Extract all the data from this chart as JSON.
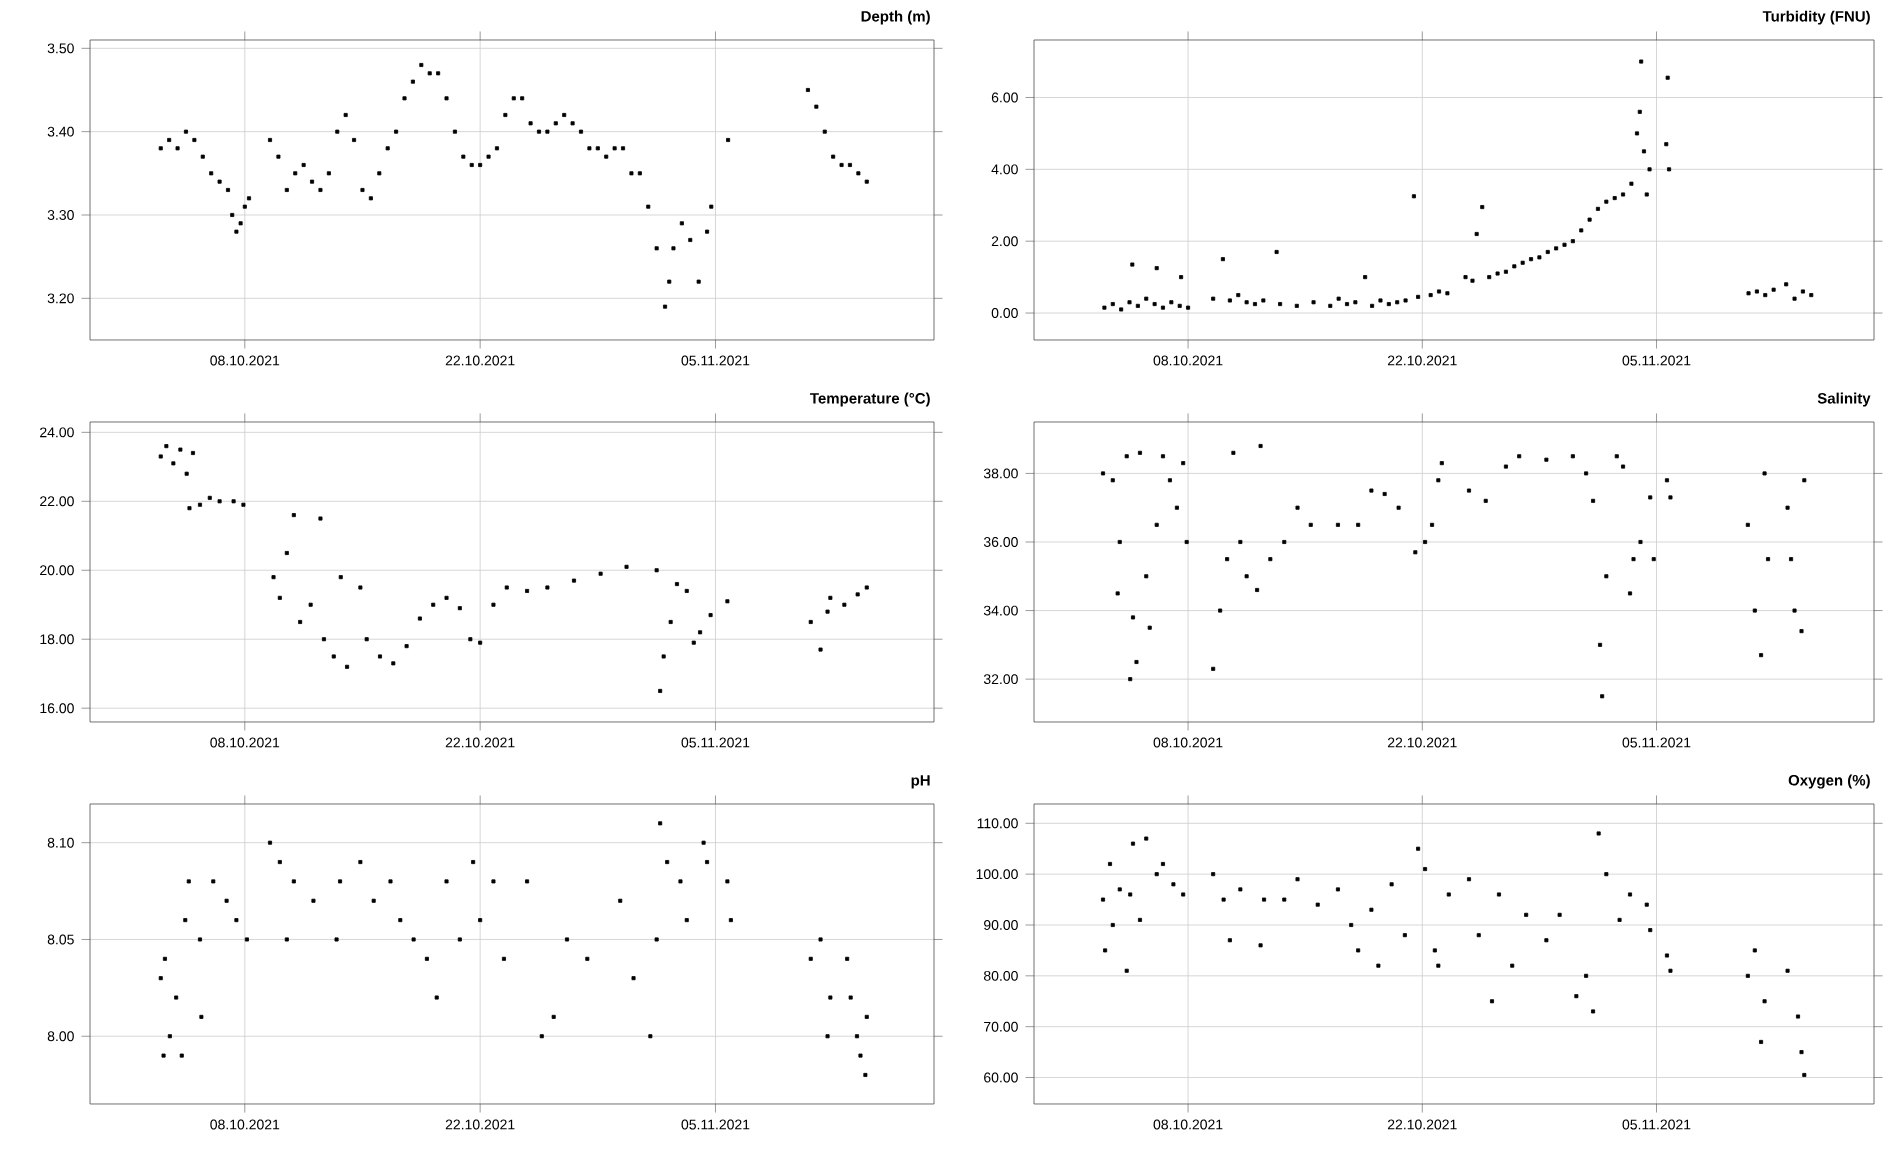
{
  "chart_data": [
    {
      "type": "scatter",
      "title": "Depth (m)",
      "color": "#000000",
      "marker": "square",
      "grid": true,
      "xlim": [
        "2021-09-28T19:00",
        "2021-11-18T00:00"
      ],
      "xticks": [
        {
          "value": "2021-10-08",
          "label": "08.10.2021"
        },
        {
          "value": "2021-10-22",
          "label": "22.10.2021"
        },
        {
          "value": "2021-11-05",
          "label": "05.11.2021"
        }
      ],
      "ylim": [
        3.15,
        3.51
      ],
      "yticks": [
        {
          "value": 3.2,
          "label": "3.20"
        },
        {
          "value": 3.3,
          "label": "3.30"
        },
        {
          "value": 3.4,
          "label": "3.40"
        },
        {
          "value": 3.5,
          "label": "3.50"
        }
      ],
      "x": [
        "2021-10-03T00:00",
        "2021-10-03T12:00",
        "2021-10-04T00:00",
        "2021-10-04T12:00",
        "2021-10-05T00:00",
        "2021-10-05T12:00",
        "2021-10-06T00:00",
        "2021-10-06T12:00",
        "2021-10-07T00:00",
        "2021-10-07T06:00",
        "2021-10-07T12:00",
        "2021-10-07T18:00",
        "2021-10-08T00:00",
        "2021-10-08T06:00",
        "2021-10-09T12:00",
        "2021-10-10T00:00",
        "2021-10-10T12:00",
        "2021-10-11T00:00",
        "2021-10-11T12:00",
        "2021-10-12T00:00",
        "2021-10-12T12:00",
        "2021-10-13T00:00",
        "2021-10-13T12:00",
        "2021-10-14T00:00",
        "2021-10-14T12:00",
        "2021-10-15T00:00",
        "2021-10-15T12:00",
        "2021-10-16T00:00",
        "2021-10-16T12:00",
        "2021-10-17T00:00",
        "2021-10-17T12:00",
        "2021-10-18T00:00",
        "2021-10-18T12:00",
        "2021-10-19T00:00",
        "2021-10-19T12:00",
        "2021-10-20T00:00",
        "2021-10-20T12:00",
        "2021-10-21T00:00",
        "2021-10-21T12:00",
        "2021-10-22T00:00",
        "2021-10-22T12:00",
        "2021-10-23T00:00",
        "2021-10-23T12:00",
        "2021-10-24T00:00",
        "2021-10-24T12:00",
        "2021-10-25T00:00",
        "2021-10-25T12:00",
        "2021-10-26T00:00",
        "2021-10-26T12:00",
        "2021-10-27T00:00",
        "2021-10-27T12:00",
        "2021-10-28T00:00",
        "2021-10-28T12:00",
        "2021-10-29T00:00",
        "2021-10-29T12:00",
        "2021-10-30T00:00",
        "2021-10-30T12:00",
        "2021-10-31T00:00",
        "2021-10-31T12:00",
        "2021-11-01T00:00",
        "2021-11-01T12:00",
        "2021-11-02T00:00",
        "2021-11-02T06:00",
        "2021-11-02T12:00",
        "2021-11-03T00:00",
        "2021-11-03T12:00",
        "2021-11-04T00:00",
        "2021-11-04T12:00",
        "2021-11-04T18:00",
        "2021-11-05T18:00",
        "2021-11-10T12:00",
        "2021-11-11T00:00",
        "2021-11-11T12:00",
        "2021-11-12T00:00",
        "2021-11-12T12:00",
        "2021-11-13T00:00",
        "2021-11-13T12:00",
        "2021-11-14T00:00"
      ],
      "values": [
        3.38,
        3.39,
        3.38,
        3.4,
        3.39,
        3.37,
        3.35,
        3.34,
        3.33,
        3.3,
        3.28,
        3.29,
        3.31,
        3.32,
        3.39,
        3.37,
        3.33,
        3.35,
        3.36,
        3.34,
        3.33,
        3.35,
        3.4,
        3.42,
        3.39,
        3.33,
        3.32,
        3.35,
        3.38,
        3.4,
        3.44,
        3.46,
        3.48,
        3.47,
        3.47,
        3.44,
        3.4,
        3.37,
        3.36,
        3.36,
        3.37,
        3.38,
        3.42,
        3.44,
        3.44,
        3.41,
        3.4,
        3.4,
        3.41,
        3.42,
        3.41,
        3.4,
        3.38,
        3.38,
        3.37,
        3.38,
        3.38,
        3.35,
        3.35,
        3.31,
        3.26,
        3.19,
        3.22,
        3.26,
        3.29,
        3.27,
        3.22,
        3.28,
        3.31,
        3.39,
        3.45,
        3.43,
        3.4,
        3.37,
        3.36,
        3.36,
        3.35,
        3.34
      ]
    },
    {
      "type": "scatter",
      "title": "Turbidity (FNU)",
      "color": "#000000",
      "marker": "square",
      "grid": true,
      "xlim": [
        "2021-09-28T19:00",
        "2021-11-18T00:00"
      ],
      "xticks": [
        {
          "value": "2021-10-08",
          "label": "08.10.2021"
        },
        {
          "value": "2021-10-22",
          "label": "22.10.2021"
        },
        {
          "value": "2021-11-05",
          "label": "05.11.2021"
        }
      ],
      "ylim": [
        -0.75,
        7.6
      ],
      "yticks": [
        {
          "value": 0,
          "label": "0.00"
        },
        {
          "value": 2,
          "label": "2.00"
        },
        {
          "value": 4,
          "label": "4.00"
        },
        {
          "value": 6,
          "label": "6.00"
        }
      ],
      "x": [
        "2021-10-03T00:00",
        "2021-10-03T12:00",
        "2021-10-04T00:00",
        "2021-10-04T12:00",
        "2021-10-04T16:00",
        "2021-10-05T00:00",
        "2021-10-05T12:00",
        "2021-10-06T00:00",
        "2021-10-06T03:00",
        "2021-10-06T12:00",
        "2021-10-07T00:00",
        "2021-10-07T12:00",
        "2021-10-07T14:00",
        "2021-10-08T00:00",
        "2021-10-09T12:00",
        "2021-10-10T02:00",
        "2021-10-10T12:00",
        "2021-10-11T00:00",
        "2021-10-11T12:00",
        "2021-10-12T00:00",
        "2021-10-12T12:00",
        "2021-10-13T07:00",
        "2021-10-13T12:00",
        "2021-10-14T12:00",
        "2021-10-15T12:00",
        "2021-10-16T12:00",
        "2021-10-17T00:00",
        "2021-10-17T12:00",
        "2021-10-18T00:00",
        "2021-10-18T14:00",
        "2021-10-19T00:00",
        "2021-10-19T12:00",
        "2021-10-20T00:00",
        "2021-10-20T12:00",
        "2021-10-21T00:00",
        "2021-10-21T12:00",
        "2021-10-21T18:00",
        "2021-10-22T12:00",
        "2021-10-23T00:00",
        "2021-10-23T12:00",
        "2021-10-24T14:00",
        "2021-10-25T00:00",
        "2021-10-25T06:00",
        "2021-10-25T14:00",
        "2021-10-26T00:00",
        "2021-10-26T12:00",
        "2021-10-27T00:00",
        "2021-10-27T12:00",
        "2021-10-28T00:00",
        "2021-10-28T12:00",
        "2021-10-29T00:00",
        "2021-10-29T12:00",
        "2021-10-30T00:00",
        "2021-10-30T12:00",
        "2021-10-31T00:00",
        "2021-10-31T12:00",
        "2021-11-01T00:00",
        "2021-11-01T12:00",
        "2021-11-02T00:00",
        "2021-11-02T12:00",
        "2021-11-03T00:00",
        "2021-11-03T12:00",
        "2021-11-03T20:00",
        "2021-11-04T00:00",
        "2021-11-04T02:00",
        "2021-11-04T06:00",
        "2021-11-04T10:00",
        "2021-11-04T14:00",
        "2021-11-05T14:00",
        "2021-11-05T16:00",
        "2021-11-05T18:00",
        "2021-11-10T12:00",
        "2021-11-11T00:00",
        "2021-11-11T12:00",
        "2021-11-12T00:00",
        "2021-11-12T18:00",
        "2021-11-13T06:00",
        "2021-11-13T18:00",
        "2021-11-14T06:00"
      ],
      "values": [
        0.15,
        0.25,
        0.1,
        0.3,
        1.35,
        0.2,
        0.4,
        0.25,
        1.25,
        0.15,
        0.3,
        0.2,
        1.0,
        0.15,
        0.4,
        1.5,
        0.35,
        0.5,
        0.3,
        0.25,
        0.35,
        1.7,
        0.25,
        0.2,
        0.3,
        0.2,
        0.4,
        0.25,
        0.3,
        1.0,
        0.2,
        0.35,
        0.25,
        0.3,
        0.35,
        3.25,
        0.45,
        0.5,
        0.6,
        0.55,
        1.0,
        0.9,
        2.2,
        2.95,
        1.0,
        1.1,
        1.15,
        1.3,
        1.4,
        1.5,
        1.55,
        1.7,
        1.8,
        1.9,
        2.0,
        2.3,
        2.6,
        2.9,
        3.1,
        3.2,
        3.3,
        3.6,
        5.0,
        5.6,
        7.0,
        4.5,
        3.3,
        4.0,
        4.7,
        6.55,
        4.0,
        0.55,
        0.6,
        0.5,
        0.65,
        0.8,
        0.4,
        0.6,
        0.5
      ]
    },
    {
      "type": "scatter",
      "title": "Temperature (°C)",
      "color": "#000000",
      "marker": "square",
      "grid": true,
      "xlim": [
        "2021-09-28T19:00",
        "2021-11-18T00:00"
      ],
      "xticks": [
        {
          "value": "2021-10-08",
          "label": "08.10.2021"
        },
        {
          "value": "2021-10-22",
          "label": "22.10.2021"
        },
        {
          "value": "2021-11-05",
          "label": "05.11.2021"
        }
      ],
      "ylim": [
        15.6,
        24.3
      ],
      "yticks": [
        {
          "value": 16,
          "label": "16.00"
        },
        {
          "value": 18,
          "label": "18.00"
        },
        {
          "value": 20,
          "label": "20.00"
        },
        {
          "value": 22,
          "label": "22.00"
        },
        {
          "value": 24,
          "label": "24.00"
        }
      ],
      "x": [
        "2021-10-03T00:00",
        "2021-10-03T08:00",
        "2021-10-03T18:00",
        "2021-10-04T04:00",
        "2021-10-04T13:00",
        "2021-10-04T17:00",
        "2021-10-04T22:00",
        "2021-10-05T08:00",
        "2021-10-05T22:00",
        "2021-10-06T12:00",
        "2021-10-07T08:00",
        "2021-10-07T22:00",
        "2021-10-09T17:00",
        "2021-10-10T02:00",
        "2021-10-10T12:00",
        "2021-10-10T22:00",
        "2021-10-11T07:00",
        "2021-10-11T22:00",
        "2021-10-12T12:00",
        "2021-10-12T17:00",
        "2021-10-13T07:00",
        "2021-10-13T17:00",
        "2021-10-14T02:00",
        "2021-10-14T21:00",
        "2021-10-15T06:00",
        "2021-10-16T01:00",
        "2021-10-16T20:00",
        "2021-10-17T15:00",
        "2021-10-18T10:00",
        "2021-10-19T05:00",
        "2021-10-20T00:00",
        "2021-10-20T19:00",
        "2021-10-21T10:00",
        "2021-10-22T00:00",
        "2021-10-22T19:00",
        "2021-10-23T14:00",
        "2021-10-24T19:00",
        "2021-10-26T00:00",
        "2021-10-27T14:00",
        "2021-10-29T04:00",
        "2021-10-30T17:00",
        "2021-11-01T12:00",
        "2021-11-01T17:00",
        "2021-11-01T22:00",
        "2021-11-02T08:00",
        "2021-11-02T17:00",
        "2021-11-03T07:00",
        "2021-11-03T17:00",
        "2021-11-04T02:00",
        "2021-11-04T17:00",
        "2021-11-05T17:00",
        "2021-11-10T16:00",
        "2021-11-11T06:00",
        "2021-11-11T16:00",
        "2021-11-11T20:00",
        "2021-11-12T16:00",
        "2021-11-13T11:00",
        "2021-11-14T00:00"
      ],
      "values": [
        23.3,
        23.6,
        23.1,
        23.5,
        22.8,
        21.8,
        23.4,
        21.9,
        22.1,
        22.0,
        22.0,
        21.9,
        19.8,
        19.2,
        20.5,
        21.6,
        18.5,
        19.0,
        21.5,
        18.0,
        17.5,
        19.8,
        17.2,
        19.5,
        18.0,
        17.5,
        17.3,
        17.8,
        18.6,
        19.0,
        19.2,
        18.9,
        18.0,
        17.9,
        19.0,
        19.5,
        19.4,
        19.5,
        19.7,
        19.9,
        20.1,
        20.0,
        16.5,
        17.5,
        18.5,
        19.6,
        19.4,
        17.9,
        18.2,
        18.7,
        19.1,
        18.5,
        17.7,
        18.8,
        19.2,
        19.0,
        19.3,
        19.5
      ]
    },
    {
      "type": "scatter",
      "title": "Salinity",
      "color": "#000000",
      "marker": "square",
      "grid": true,
      "xlim": [
        "2021-09-28T19:00",
        "2021-11-18T00:00"
      ],
      "xticks": [
        {
          "value": "2021-10-08",
          "label": "08.10.2021"
        },
        {
          "value": "2021-10-22",
          "label": "22.10.2021"
        },
        {
          "value": "2021-11-05",
          "label": "05.11.2021"
        }
      ],
      "ylim": [
        30.75,
        39.5
      ],
      "yticks": [
        {
          "value": 32,
          "label": "32.00"
        },
        {
          "value": 34,
          "label": "34.00"
        },
        {
          "value": 36,
          "label": "36.00"
        },
        {
          "value": 38,
          "label": "38.00"
        }
      ],
      "x": [
        "2021-10-02T22:00",
        "2021-10-03T12:00",
        "2021-10-03T19:00",
        "2021-10-03T22:00",
        "2021-10-04T08:00",
        "2021-10-04T13:00",
        "2021-10-04T17:00",
        "2021-10-04T22:00",
        "2021-10-05T03:00",
        "2021-10-05T12:00",
        "2021-10-05T17:00",
        "2021-10-06T03:00",
        "2021-10-06T12:00",
        "2021-10-06T22:00",
        "2021-10-07T08:00",
        "2021-10-07T17:00",
        "2021-10-07T22:00",
        "2021-10-09T12:00",
        "2021-10-09T22:00",
        "2021-10-10T08:00",
        "2021-10-10T17:00",
        "2021-10-11T03:00",
        "2021-10-11T12:00",
        "2021-10-12T03:00",
        "2021-10-12T08:00",
        "2021-10-12T22:00",
        "2021-10-13T18:00",
        "2021-10-14T13:00",
        "2021-10-15T08:00",
        "2021-10-16T23:00",
        "2021-10-18T04:00",
        "2021-10-18T23:00",
        "2021-10-19T18:00",
        "2021-10-20T14:00",
        "2021-10-21T14:00",
        "2021-10-22T04:00",
        "2021-10-22T14:00",
        "2021-10-22T23:00",
        "2021-10-23T04:00",
        "2021-10-24T19:00",
        "2021-10-25T19:00",
        "2021-10-27T00:00",
        "2021-10-27T19:00",
        "2021-10-29T10:00",
        "2021-10-31T00:00",
        "2021-10-31T19:00",
        "2021-11-01T05:00",
        "2021-11-01T15:00",
        "2021-11-01T18:00",
        "2021-11-02T00:00",
        "2021-11-02T15:00",
        "2021-11-03T00:00",
        "2021-11-03T10:00",
        "2021-11-03T15:00",
        "2021-11-04T01:00",
        "2021-11-04T15:00",
        "2021-11-04T20:00",
        "2021-11-05T15:00",
        "2021-11-05T20:00",
        "2021-11-10T11:00",
        "2021-11-10T21:00",
        "2021-11-11T06:00",
        "2021-11-11T11:00",
        "2021-11-11T16:00",
        "2021-11-12T20:00",
        "2021-11-13T01:00",
        "2021-11-13T06:00",
        "2021-11-13T16:00",
        "2021-11-13T20:00"
      ],
      "values": [
        38.0,
        37.8,
        34.5,
        36.0,
        38.5,
        32.0,
        33.8,
        32.5,
        38.6,
        35.0,
        33.5,
        36.5,
        38.5,
        37.8,
        37.0,
        38.3,
        36.0,
        32.3,
        34.0,
        35.5,
        38.6,
        36.0,
        35.0,
        34.6,
        38.8,
        35.5,
        36.0,
        37.0,
        36.5,
        36.5,
        36.5,
        37.5,
        37.4,
        37.0,
        35.7,
        36.0,
        36.5,
        37.8,
        38.3,
        37.5,
        37.2,
        38.2,
        38.5,
        38.4,
        38.5,
        38.0,
        37.2,
        33.0,
        31.5,
        35.0,
        38.5,
        38.2,
        34.5,
        35.5,
        36.0,
        37.3,
        35.5,
        37.8,
        37.3,
        36.5,
        34.0,
        32.7,
        38.0,
        35.5,
        37.0,
        35.5,
        34.0,
        33.4,
        37.8
      ]
    },
    {
      "type": "scatter",
      "title": "pH",
      "color": "#000000",
      "marker": "square",
      "grid": true,
      "xlim": [
        "2021-09-28T19:00",
        "2021-11-18T00:00"
      ],
      "xticks": [
        {
          "value": "2021-10-08",
          "label": "08.10.2021"
        },
        {
          "value": "2021-10-22",
          "label": "22.10.2021"
        },
        {
          "value": "2021-11-05",
          "label": "05.11.2021"
        }
      ],
      "ylim": [
        7.965,
        8.12
      ],
      "yticks": [
        {
          "value": 8.0,
          "label": "8.00"
        },
        {
          "value": 8.05,
          "label": "8.05"
        },
        {
          "value": 8.1,
          "label": "8.10"
        }
      ],
      "x": [
        "2021-10-03T00:00",
        "2021-10-03T04:00",
        "2021-10-03T06:00",
        "2021-10-03T13:00",
        "2021-10-03T22:00",
        "2021-10-04T06:00",
        "2021-10-04T11:00",
        "2021-10-04T16:00",
        "2021-10-05T08:00",
        "2021-10-05T10:00",
        "2021-10-06T03:00",
        "2021-10-06T22:00",
        "2021-10-07T12:00",
        "2021-10-08T03:00",
        "2021-10-09T12:00",
        "2021-10-10T02:00",
        "2021-10-10T12:00",
        "2021-10-10T22:00",
        "2021-10-12T02:00",
        "2021-10-13T11:00",
        "2021-10-13T16:00",
        "2021-10-14T21:00",
        "2021-10-15T16:00",
        "2021-10-16T16:00",
        "2021-10-17T06:00",
        "2021-10-18T01:00",
        "2021-10-18T20:00",
        "2021-10-19T10:00",
        "2021-10-20T00:00",
        "2021-10-20T19:00",
        "2021-10-21T14:00",
        "2021-10-22T00:00",
        "2021-10-22T19:00",
        "2021-10-23T10:00",
        "2021-10-24T19:00",
        "2021-10-25T16:00",
        "2021-10-26T09:00",
        "2021-10-27T04:00",
        "2021-10-28T09:00",
        "2021-10-30T08:00",
        "2021-10-31T03:00",
        "2021-11-01T03:00",
        "2021-11-01T12:00",
        "2021-11-01T17:00",
        "2021-11-02T03:00",
        "2021-11-02T22:00",
        "2021-11-03T07:00",
        "2021-11-04T07:00",
        "2021-11-04T12:00",
        "2021-11-05T17:00",
        "2021-11-05T22:00",
        "2021-11-10T16:00",
        "2021-11-11T06:00",
        "2021-11-11T16:00",
        "2021-11-11T20:00",
        "2021-11-12T20:00",
        "2021-11-13T01:00",
        "2021-11-13T10:00",
        "2021-11-13T15:00",
        "2021-11-13T22:00",
        "2021-11-14T00:00"
      ],
      "values": [
        8.03,
        7.99,
        8.04,
        8.0,
        8.02,
        7.99,
        8.06,
        8.08,
        8.05,
        8.01,
        8.08,
        8.07,
        8.06,
        8.05,
        8.1,
        8.09,
        8.05,
        8.08,
        8.07,
        8.05,
        8.08,
        8.09,
        8.07,
        8.08,
        8.06,
        8.05,
        8.04,
        8.02,
        8.08,
        8.05,
        8.09,
        8.06,
        8.08,
        8.04,
        8.08,
        8.0,
        8.01,
        8.05,
        8.04,
        8.07,
        8.03,
        8.0,
        8.05,
        8.11,
        8.09,
        8.08,
        8.06,
        8.1,
        8.09,
        8.08,
        8.06,
        8.04,
        8.05,
        8.0,
        8.02,
        8.04,
        8.02,
        8.0,
        7.99,
        7.98,
        8.01
      ]
    },
    {
      "type": "scatter",
      "title": "Oxygen (%)",
      "color": "#000000",
      "marker": "square",
      "grid": true,
      "xlim": [
        "2021-09-28T19:00",
        "2021-11-18T00:00"
      ],
      "xticks": [
        {
          "value": "2021-10-08",
          "label": "08.10.2021"
        },
        {
          "value": "2021-10-22",
          "label": "22.10.2021"
        },
        {
          "value": "2021-11-05",
          "label": "05.11.2021"
        }
      ],
      "ylim": [
        54.8,
        113.8
      ],
      "yticks": [
        {
          "value": 60,
          "label": "60.00"
        },
        {
          "value": 70,
          "label": "70.00"
        },
        {
          "value": 80,
          "label": "80.00"
        },
        {
          "value": 90,
          "label": "90.00"
        },
        {
          "value": 100,
          "label": "100.00"
        },
        {
          "value": 110,
          "label": "110.00"
        }
      ],
      "x": [
        "2021-10-02T22:00",
        "2021-10-03T01:00",
        "2021-10-03T08:00",
        "2021-10-03T12:00",
        "2021-10-03T22:00",
        "2021-10-04T08:00",
        "2021-10-04T13:00",
        "2021-10-04T17:00",
        "2021-10-05T03:00",
        "2021-10-05T12:00",
        "2021-10-06T03:00",
        "2021-10-06T12:00",
        "2021-10-07T03:00",
        "2021-10-07T17:00",
        "2021-10-09T12:00",
        "2021-10-10T03:00",
        "2021-10-10T12:00",
        "2021-10-11T03:00",
        "2021-10-12T08:00",
        "2021-10-12T13:00",
        "2021-10-13T18:00",
        "2021-10-14T13:00",
        "2021-10-15T18:00",
        "2021-10-16T23:00",
        "2021-10-17T18:00",
        "2021-10-18T04:00",
        "2021-10-18T23:00",
        "2021-10-19T09:00",
        "2021-10-20T04:00",
        "2021-10-20T23:00",
        "2021-10-21T18:00",
        "2021-10-22T04:00",
        "2021-10-22T18:00",
        "2021-10-22T23:00",
        "2021-10-23T14:00",
        "2021-10-24T19:00",
        "2021-10-25T09:00",
        "2021-10-26T04:00",
        "2021-10-26T14:00",
        "2021-10-27T09:00",
        "2021-10-28T05:00",
        "2021-10-29T10:00",
        "2021-10-30T05:00",
        "2021-10-31T05:00",
        "2021-10-31T19:00",
        "2021-11-01T05:00",
        "2021-11-01T13:00",
        "2021-11-02T00:00",
        "2021-11-02T19:00",
        "2021-11-03T10:00",
        "2021-11-04T10:00",
        "2021-11-04T15:00",
        "2021-11-05T15:00",
        "2021-11-05T20:00",
        "2021-11-10T11:00",
        "2021-11-10T21:00",
        "2021-11-11T06:00",
        "2021-11-11T11:00",
        "2021-11-12T20:00",
        "2021-11-13T11:00",
        "2021-11-13T16:00",
        "2021-11-13T20:00"
      ],
      "values": [
        95,
        85,
        102,
        90,
        97,
        81,
        96,
        106,
        91,
        107,
        100,
        102,
        98,
        96,
        100,
        95,
        87,
        97,
        86,
        95,
        95,
        99,
        94,
        97,
        90,
        85,
        93,
        82,
        98,
        88,
        105,
        101,
        85,
        82,
        96,
        99,
        88,
        75,
        96,
        82,
        92,
        87,
        92,
        76,
        80,
        73,
        108,
        100,
        91,
        96,
        94,
        89,
        84,
        81,
        80,
        85,
        67,
        75,
        81,
        72,
        65,
        60.5
      ]
    }
  ]
}
